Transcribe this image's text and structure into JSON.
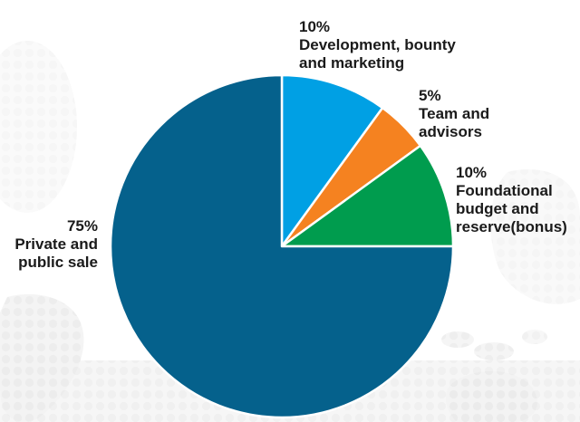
{
  "background": {
    "color": "#ffffff",
    "watermark": "world-map-halftone",
    "watermark_color": "#ededed"
  },
  "text_color": "#1a1a1a",
  "chart_data": {
    "type": "pie",
    "title": "",
    "start_angle_deg": 0,
    "direction": "clockwise",
    "total": 100,
    "legend_position": "around-slices",
    "slices": [
      {
        "name": "development",
        "percent_label": "10%",
        "value": 10,
        "label": "Development, bounty and marketing",
        "label_lines": [
          "Development, bounty",
          "and marketing"
        ],
        "color": "#00A0E4"
      },
      {
        "name": "team",
        "percent_label": "5%",
        "value": 5,
        "label": "Team and advisors",
        "label_lines": [
          "Team and",
          "advisors"
        ],
        "color": "#F58220"
      },
      {
        "name": "foundation",
        "percent_label": "10%",
        "value": 10,
        "label": "Foundational budget and reserve(bonus)",
        "label_lines": [
          "Foundational",
          "budget and",
          "reserve(bonus)"
        ],
        "color": "#009C4E"
      },
      {
        "name": "sale",
        "percent_label": "75%",
        "value": 75,
        "label": "Private and public sale",
        "label_lines": [
          "Private and",
          "public sale"
        ],
        "color": "#05618C"
      }
    ]
  }
}
